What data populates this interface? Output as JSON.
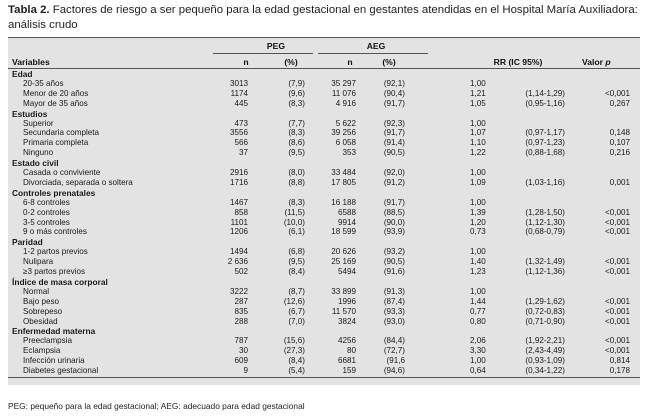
{
  "title": {
    "label": "Tabla 2.",
    "text": "Factores de riesgo a ser pequeño para la edad gestacional en gestantes atendidas en el Hospital María Auxiliadora: análisis crudo"
  },
  "table": {
    "group_headers": {
      "peg": "PEG",
      "aeg": "AEG"
    },
    "columns": {
      "variables": "Variables",
      "n1": "n",
      "p1": "(%)",
      "n2": "n",
      "p2": "(%)",
      "rr": "RR (IC 95%)",
      "valor": "Valor",
      "p": "p"
    },
    "sections": [
      {
        "name": "Edad",
        "rows": [
          {
            "label": "20-35 años",
            "n1": "3013",
            "p1": "(7,9)",
            "n2": "35 297",
            "p2": "(92,1)",
            "rr": "1,00",
            "ic": "",
            "valor": ""
          },
          {
            "label": "Menor de 20 años",
            "n1": "1174",
            "p1": "(9,6)",
            "n2": "11 076",
            "p2": "(90,4)",
            "rr": "1,21",
            "ic": "(1,14-1,29)",
            "valor": "<0,001"
          },
          {
            "label": "Mayor de 35 años",
            "n1": "445",
            "p1": "(8,3)",
            "n2": "4 916",
            "p2": "(91,7)",
            "rr": "1,05",
            "ic": "(0,95-1,16)",
            "valor": "0,267"
          }
        ]
      },
      {
        "name": "Estudios",
        "rows": [
          {
            "label": "Superior",
            "n1": "473",
            "p1": "(7,7)",
            "n2": "5 622",
            "p2": "(92,3)",
            "rr": "1,00",
            "ic": "",
            "valor": ""
          },
          {
            "label": "Secundaria completa",
            "n1": "3556",
            "p1": "(8,3)",
            "n2": "39 256",
            "p2": "(91,7)",
            "rr": "1,07",
            "ic": "(0,97-1,17)",
            "valor": "0,148"
          },
          {
            "label": "Primaria completa",
            "n1": "566",
            "p1": "(8,6)",
            "n2": "6 058",
            "p2": "(91,4)",
            "rr": "1,10",
            "ic": "(0,97-1,23)",
            "valor": "0,107"
          },
          {
            "label": "Ninguno",
            "n1": "37",
            "p1": "(9,5)",
            "n2": "353",
            "p2": "(90,5)",
            "rr": "1,22",
            "ic": "(0,88-1,68)",
            "valor": "0,216"
          }
        ]
      },
      {
        "name": "Estado civil",
        "rows": [
          {
            "label": "Casada o conviviente",
            "n1": "2916",
            "p1": "(8,0)",
            "n2": "33 484",
            "p2": "(92,0)",
            "rr": "1,00",
            "ic": "",
            "valor": ""
          },
          {
            "label": "Divorciada, separada o soltera",
            "n1": "1716",
            "p1": "(8,8)",
            "n2": "17 805",
            "p2": "(91,2)",
            "rr": "1,09",
            "ic": "(1,03-1,16)",
            "valor": "0,001"
          }
        ]
      },
      {
        "name": "Controles prenatales",
        "rows": [
          {
            "label": "6-8 controles",
            "n1": "1467",
            "p1": "(8,3)",
            "n2": "16 188",
            "p2": "(91,7)",
            "rr": "1,00",
            "ic": "",
            "valor": ""
          },
          {
            "label": "0-2 controles",
            "n1": "858",
            "p1": "(11,5)",
            "n2": "6588",
            "p2": "(88,5)",
            "rr": "1,39",
            "ic": "(1,28-1,50)",
            "valor": "<0,001"
          },
          {
            "label": "3-5 controles",
            "n1": "1101",
            "p1": "(10,0)",
            "n2": "9914",
            "p2": "(90,0)",
            "rr": "1,20",
            "ic": "(1,12-1,30)",
            "valor": "<0,001"
          },
          {
            "label": "9 o más controles",
            "n1": "1206",
            "p1": "(6,1)",
            "n2": "18 599",
            "p2": "(93,9)",
            "rr": "0,73",
            "ic": "(0,68-0,79)",
            "valor": "<0,001"
          }
        ]
      },
      {
        "name": "Paridad",
        "rows": [
          {
            "label": "1-2 partos previos",
            "n1": "1494",
            "p1": "(6,8)",
            "n2": "20 626",
            "p2": "(93,2)",
            "rr": "1,00",
            "ic": "",
            "valor": ""
          },
          {
            "label": "Nulipara",
            "n1": "2 636",
            "p1": "(9,5)",
            "n2": "25 169",
            "p2": "(90,5)",
            "rr": "1,40",
            "ic": "(1,32-1,49)",
            "valor": "<0,001"
          },
          {
            "label": "≥3 partos previos",
            "n1": "502",
            "p1": "(8,4)",
            "n2": "5494",
            "p2": "(91,6)",
            "rr": "1,23",
            "ic": "(1,12-1,36)",
            "valor": "<0,001"
          }
        ]
      },
      {
        "name": "Índice de masa corporal",
        "rows": [
          {
            "label": "Normal",
            "n1": "3222",
            "p1": "(8,7)",
            "n2": "33 899",
            "p2": "(91,3)",
            "rr": "1,00",
            "ic": "",
            "valor": ""
          },
          {
            "label": "Bajo peso",
            "n1": "287",
            "p1": "(12,6)",
            "n2": "1996",
            "p2": "(87,4)",
            "rr": "1,44",
            "ic": "(1,29-1,62)",
            "valor": "<0,001"
          },
          {
            "label": "Sobrepeso",
            "n1": "835",
            "p1": "(6,7)",
            "n2": "11 570",
            "p2": "(93,3)",
            "rr": "0,77",
            "ic": "(0,72-0,83)",
            "valor": "<0,001"
          },
          {
            "label": "Obesidad",
            "n1": "288",
            "p1": "(7,0)",
            "n2": "3824",
            "p2": "(93,0)",
            "rr": "0,80",
            "ic": "(0,71-0,90)",
            "valor": "<0,001"
          }
        ]
      },
      {
        "name": "Enfermedad materna",
        "rows": [
          {
            "label": "Preeclampsia",
            "n1": "787",
            "p1": "(15,6)",
            "n2": "4256",
            "p2": "(84,4)",
            "rr": "2,06",
            "ic": "(1,92-2,21)",
            "valor": "<0,001"
          },
          {
            "label": "Eclampsia",
            "n1": "30",
            "p1": "(27,3)",
            "n2": "80",
            "p2": "(72,7)",
            "rr": "3,30",
            "ic": "(2,43-4,49)",
            "valor": "<0,001"
          },
          {
            "label": "Infección urinaria",
            "n1": "609",
            "p1": "(8,4)",
            "n2": "6681",
            "p2": "(91,6",
            "rr": "1,00",
            "ic": "(0,93-1,09)",
            "valor": "0,814"
          },
          {
            "label": "Diabetes gestacional",
            "n1": "9",
            "p1": "(5,4)",
            "n2": "159",
            "p2": "(94,6)",
            "rr": "0,64",
            "ic": "(0,34-1,22)",
            "valor": "0,178"
          }
        ]
      }
    ]
  },
  "footnote": "PEG: pequeño para la edad gestacional; AEG: adecuado para edad gestacional"
}
